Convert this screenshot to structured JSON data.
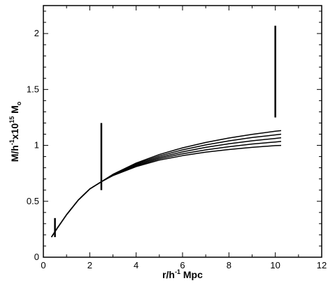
{
  "chart_data": {
    "type": "line",
    "xlabel": {
      "base": "r/h",
      "sup": "-1",
      "rest": " Mpc"
    },
    "ylabel": {
      "base": "M/h",
      "sup1": "-1",
      "mid": "x10",
      "sup2": "15",
      "rest": " M",
      "sub": "o"
    },
    "xlim": [
      0,
      12
    ],
    "ylim": [
      0,
      2.25
    ],
    "xticks": [
      0,
      2,
      4,
      6,
      8,
      10,
      12
    ],
    "yticks": [
      0,
      0.5,
      1,
      1.5,
      2
    ],
    "ytick_labels": [
      "0",
      "0.5",
      "1",
      "1.5",
      "2"
    ],
    "grid": false,
    "line_color": "#000000",
    "series": [
      {
        "x": [
          0.35,
          0.6,
          1,
          1.5,
          2,
          2.5,
          3,
          4,
          5,
          6,
          7,
          8,
          9,
          10,
          10.25
        ],
        "values": [
          0.18,
          0.26,
          0.38,
          0.51,
          0.61,
          0.675,
          0.73,
          0.81,
          0.868,
          0.908,
          0.94,
          0.963,
          0.982,
          0.998,
          1.0
        ]
      },
      {
        "x": [
          0.35,
          0.6,
          1,
          1.5,
          2,
          2.5,
          3,
          4,
          5,
          6,
          7,
          8,
          9,
          10,
          10.25
        ],
        "values": [
          0.18,
          0.26,
          0.38,
          0.51,
          0.61,
          0.675,
          0.732,
          0.818,
          0.88,
          0.925,
          0.96,
          0.988,
          1.012,
          1.03,
          1.035
        ]
      },
      {
        "x": [
          0.35,
          0.6,
          1,
          1.5,
          2,
          2.5,
          3,
          4,
          5,
          6,
          7,
          8,
          9,
          10,
          10.25
        ],
        "values": [
          0.18,
          0.26,
          0.38,
          0.51,
          0.61,
          0.675,
          0.735,
          0.826,
          0.892,
          0.942,
          0.982,
          1.014,
          1.041,
          1.062,
          1.068
        ]
      },
      {
        "x": [
          0.35,
          0.6,
          1,
          1.5,
          2,
          2.5,
          3,
          4,
          5,
          6,
          7,
          8,
          9,
          10,
          10.25
        ],
        "values": [
          0.18,
          0.26,
          0.38,
          0.51,
          0.61,
          0.675,
          0.738,
          0.834,
          0.905,
          0.96,
          1.004,
          1.04,
          1.07,
          1.094,
          1.1
        ]
      },
      {
        "x": [
          0.35,
          0.6,
          1,
          1.5,
          2,
          2.5,
          3,
          4,
          5,
          6,
          7,
          8,
          9,
          10,
          10.25
        ],
        "values": [
          0.18,
          0.26,
          0.38,
          0.51,
          0.61,
          0.675,
          0.741,
          0.842,
          0.918,
          0.978,
          1.026,
          1.066,
          1.099,
          1.126,
          1.132
        ]
      }
    ],
    "error_bars": [
      {
        "x": 0.5,
        "low": 0.18,
        "high": 0.35
      },
      {
        "x": 2.5,
        "low": 0.6,
        "high": 1.2
      },
      {
        "x": 10,
        "low": 1.25,
        "high": 2.07
      }
    ]
  }
}
